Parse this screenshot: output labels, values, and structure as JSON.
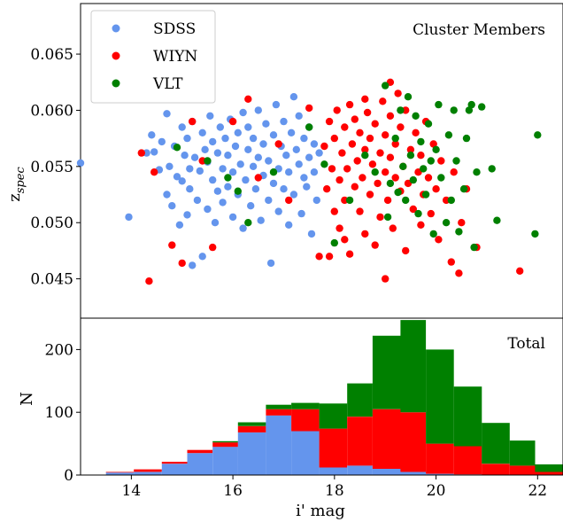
{
  "chart_data": [
    {
      "type": "scatter",
      "annotation": "Cluster Members",
      "ylabel_main": "z",
      "ylabel_sub": "spec",
      "xlim": [
        13.0,
        22.5
      ],
      "ylim": [
        0.0415,
        0.0695
      ],
      "yticks": [
        0.045,
        0.05,
        0.055,
        0.06,
        0.065
      ],
      "ytick_labels": [
        "0.045",
        "0.050",
        "0.055",
        "0.060",
        "0.065"
      ],
      "legend_position": "top-left",
      "series": [
        {
          "name": "SDSS",
          "color": "#6495ed",
          "points": [
            [
              13.0,
              0.0553
            ],
            [
              13.95,
              0.0505
            ],
            [
              14.3,
              0.0562
            ],
            [
              14.4,
              0.0578
            ],
            [
              14.45,
              0.0563
            ],
            [
              14.55,
              0.0547
            ],
            [
              14.6,
              0.0572
            ],
            [
              14.7,
              0.0525
            ],
            [
              14.7,
              0.0597
            ],
            [
              14.75,
              0.055
            ],
            [
              14.8,
              0.0515
            ],
            [
              14.85,
              0.0568
            ],
            [
              14.9,
              0.0541
            ],
            [
              14.95,
              0.0498
            ],
            [
              15.0,
              0.0537
            ],
            [
              15.0,
              0.0585
            ],
            [
              15.05,
              0.056
            ],
            [
              15.1,
              0.0575
            ],
            [
              15.1,
              0.0507
            ],
            [
              15.15,
              0.053
            ],
            [
              15.15,
              0.0548
            ],
            [
              15.2,
              0.0462
            ],
            [
              15.2,
              0.059
            ],
            [
              15.25,
              0.0558
            ],
            [
              15.3,
              0.052
            ],
            [
              15.35,
              0.0546
            ],
            [
              15.4,
              0.058
            ],
            [
              15.4,
              0.047
            ],
            [
              15.45,
              0.0565
            ],
            [
              15.5,
              0.0512
            ],
            [
              15.5,
              0.0554
            ],
            [
              15.55,
              0.0595
            ],
            [
              15.6,
              0.0538
            ],
            [
              15.6,
              0.0572
            ],
            [
              15.65,
              0.05
            ],
            [
              15.7,
              0.0528
            ],
            [
              15.7,
              0.0562
            ],
            [
              15.75,
              0.0585
            ],
            [
              15.8,
              0.0548
            ],
            [
              15.8,
              0.0518
            ],
            [
              15.85,
              0.0575
            ],
            [
              15.9,
              0.0532
            ],
            [
              15.9,
              0.056
            ],
            [
              15.95,
              0.0592
            ],
            [
              16.0,
              0.0505
            ],
            [
              16.0,
              0.0545
            ],
            [
              16.05,
              0.0568
            ],
            [
              16.1,
              0.0525
            ],
            [
              16.1,
              0.058
            ],
            [
              16.15,
              0.0552
            ],
            [
              16.2,
              0.0598
            ],
            [
              16.2,
              0.0495
            ],
            [
              16.25,
              0.0538
            ],
            [
              16.3,
              0.0565
            ],
            [
              16.3,
              0.0585
            ],
            [
              16.35,
              0.0515
            ],
            [
              16.4,
              0.055
            ],
            [
              16.4,
              0.0575
            ],
            [
              16.45,
              0.053
            ],
            [
              16.5,
              0.06
            ],
            [
              16.5,
              0.0558
            ],
            [
              16.55,
              0.0502
            ],
            [
              16.6,
              0.0542
            ],
            [
              16.6,
              0.057
            ],
            [
              16.65,
              0.0588
            ],
            [
              16.7,
              0.052
            ],
            [
              16.7,
              0.0555
            ],
            [
              16.75,
              0.0464
            ],
            [
              16.8,
              0.0535
            ],
            [
              16.8,
              0.0578
            ],
            [
              16.85,
              0.0605
            ],
            [
              16.9,
              0.0548
            ],
            [
              16.9,
              0.051
            ],
            [
              16.95,
              0.0568
            ],
            [
              17.0,
              0.059
            ],
            [
              17.0,
              0.053
            ],
            [
              17.05,
              0.056
            ],
            [
              17.1,
              0.0498
            ],
            [
              17.1,
              0.0545
            ],
            [
              17.15,
              0.058
            ],
            [
              17.2,
              0.0612
            ],
            [
              17.2,
              0.0525
            ],
            [
              17.25,
              0.0565
            ],
            [
              17.3,
              0.0552
            ],
            [
              17.3,
              0.0595
            ],
            [
              17.35,
              0.0508
            ],
            [
              17.4,
              0.054
            ],
            [
              17.4,
              0.0575
            ],
            [
              17.45,
              0.0532
            ],
            [
              17.5,
              0.0585
            ],
            [
              17.5,
              0.0558
            ],
            [
              17.55,
              0.049
            ],
            [
              17.6,
              0.0545
            ],
            [
              17.6,
              0.057
            ],
            [
              17.65,
              0.052
            ],
            [
              17.7,
              0.0562
            ]
          ]
        },
        {
          "name": "WIYN",
          "color": "#ff0000",
          "points": [
            [
              14.2,
              0.0562
            ],
            [
              14.35,
              0.0448
            ],
            [
              14.45,
              0.0545
            ],
            [
              14.8,
              0.048
            ],
            [
              15.0,
              0.0464
            ],
            [
              15.2,
              0.059
            ],
            [
              15.4,
              0.0555
            ],
            [
              15.6,
              0.0478
            ],
            [
              16.0,
              0.059
            ],
            [
              16.3,
              0.061
            ],
            [
              16.5,
              0.054
            ],
            [
              16.9,
              0.057
            ],
            [
              17.1,
              0.052
            ],
            [
              17.5,
              0.0602
            ],
            [
              17.7,
              0.047
            ],
            [
              17.8,
              0.0568
            ],
            [
              17.85,
              0.053
            ],
            [
              17.9,
              0.059
            ],
            [
              17.95,
              0.0548
            ],
            [
              18.0,
              0.051
            ],
            [
              18.0,
              0.0575
            ],
            [
              18.05,
              0.06
            ],
            [
              18.1,
              0.0538
            ],
            [
              18.1,
              0.0495
            ],
            [
              18.15,
              0.0562
            ],
            [
              18.2,
              0.0585
            ],
            [
              18.2,
              0.052
            ],
            [
              18.25,
              0.0548
            ],
            [
              18.3,
              0.0605
            ],
            [
              18.3,
              0.0472
            ],
            [
              18.35,
              0.057
            ],
            [
              18.4,
              0.0532
            ],
            [
              18.4,
              0.0592
            ],
            [
              18.45,
              0.0555
            ],
            [
              18.5,
              0.051
            ],
            [
              18.5,
              0.058
            ],
            [
              18.55,
              0.054
            ],
            [
              18.6,
              0.0565
            ],
            [
              18.6,
              0.049
            ],
            [
              18.65,
              0.0598
            ],
            [
              18.7,
              0.0525
            ],
            [
              18.7,
              0.0575
            ],
            [
              18.75,
              0.0552
            ],
            [
              18.8,
              0.048
            ],
            [
              18.8,
              0.0588
            ],
            [
              18.85,
              0.0535
            ],
            [
              18.9,
              0.0562
            ],
            [
              18.9,
              0.0505
            ],
            [
              18.95,
              0.0608
            ],
            [
              19.0,
              0.0545
            ],
            [
              19.0,
              0.0578
            ],
            [
              19.05,
              0.052
            ],
            [
              19.1,
              0.0595
            ],
            [
              19.1,
              0.0558
            ],
            [
              19.15,
              0.0495
            ],
            [
              19.2,
              0.054
            ],
            [
              19.2,
              0.057
            ],
            [
              19.25,
              0.0615
            ],
            [
              19.3,
              0.0528
            ],
            [
              19.3,
              0.0585
            ],
            [
              19.35,
              0.055
            ],
            [
              19.4,
              0.0475
            ],
            [
              19.4,
              0.06
            ],
            [
              19.45,
              0.0535
            ],
            [
              19.5,
              0.0565
            ],
            [
              19.55,
              0.0512
            ],
            [
              19.6,
              0.058
            ],
            [
              19.65,
              0.0545
            ],
            [
              19.7,
              0.0498
            ],
            [
              19.7,
              0.056
            ],
            [
              19.75,
              0.0525
            ],
            [
              19.8,
              0.059
            ],
            [
              19.85,
              0.054
            ],
            [
              19.9,
              0.0508
            ],
            [
              19.95,
              0.057
            ],
            [
              20.0,
              0.053
            ],
            [
              20.05,
              0.0485
            ],
            [
              20.1,
              0.0555
            ],
            [
              20.2,
              0.052
            ],
            [
              20.3,
              0.0465
            ],
            [
              20.35,
              0.0545
            ],
            [
              20.5,
              0.05
            ],
            [
              20.45,
              0.0455
            ],
            [
              20.6,
              0.053
            ],
            [
              20.8,
              0.0478
            ],
            [
              21.65,
              0.0457
            ],
            [
              19.1,
              0.0625
            ],
            [
              18.6,
              0.061
            ],
            [
              17.9,
              0.047
            ],
            [
              19.0,
              0.045
            ],
            [
              18.2,
              0.0485
            ]
          ]
        },
        {
          "name": "VLT",
          "color": "#008000",
          "points": [
            [
              14.9,
              0.0567
            ],
            [
              15.5,
              0.0555
            ],
            [
              15.9,
              0.054
            ],
            [
              16.1,
              0.0528
            ],
            [
              16.3,
              0.05
            ],
            [
              16.8,
              0.0545
            ],
            [
              17.5,
              0.0585
            ],
            [
              17.8,
              0.0552
            ],
            [
              18.0,
              0.0482
            ],
            [
              18.3,
              0.052
            ],
            [
              18.6,
              0.056
            ],
            [
              18.8,
              0.0545
            ],
            [
              19.0,
              0.0622
            ],
            [
              19.05,
              0.0505
            ],
            [
              19.1,
              0.0535
            ],
            [
              19.2,
              0.0575
            ],
            [
              19.3,
              0.06
            ],
            [
              19.35,
              0.055
            ],
            [
              19.4,
              0.052
            ],
            [
              19.45,
              0.0612
            ],
            [
              19.5,
              0.056
            ],
            [
              19.55,
              0.0538
            ],
            [
              19.6,
              0.0595
            ],
            [
              19.65,
              0.0508
            ],
            [
              19.7,
              0.0572
            ],
            [
              19.75,
              0.0548
            ],
            [
              19.8,
              0.0525
            ],
            [
              19.85,
              0.0588
            ],
            [
              19.9,
              0.0555
            ],
            [
              19.95,
              0.049
            ],
            [
              20.0,
              0.0565
            ],
            [
              20.05,
              0.0605
            ],
            [
              20.1,
              0.054
            ],
            [
              20.2,
              0.05
            ],
            [
              20.25,
              0.0578
            ],
            [
              20.3,
              0.052
            ],
            [
              20.35,
              0.06
            ],
            [
              20.4,
              0.0555
            ],
            [
              20.45,
              0.0492
            ],
            [
              20.55,
              0.053
            ],
            [
              20.6,
              0.0575
            ],
            [
              20.7,
              0.0605
            ],
            [
              20.75,
              0.0478
            ],
            [
              20.8,
              0.0545
            ],
            [
              20.9,
              0.0603
            ],
            [
              21.1,
              0.0548
            ],
            [
              21.2,
              0.0502
            ],
            [
              21.95,
              0.049
            ],
            [
              22.0,
              0.0578
            ],
            [
              20.65,
              0.06
            ],
            [
              19.25,
              0.0527
            ]
          ]
        }
      ]
    },
    {
      "type": "bar",
      "stacked": true,
      "annotation": "Total",
      "xlabel": "i' mag",
      "ylabel": "N",
      "xlim": [
        13.0,
        22.5
      ],
      "ylim": [
        0,
        250
      ],
      "xticks": [
        14,
        16,
        18,
        20,
        22
      ],
      "xtick_labels": [
        "14",
        "16",
        "18",
        "20",
        "22"
      ],
      "yticks": [
        0,
        100,
        200
      ],
      "ytick_labels": [
        "0",
        "100",
        "200"
      ],
      "bin_edges": [
        13.5,
        14.05,
        14.6,
        15.1,
        15.6,
        16.1,
        16.65,
        17.15,
        17.7,
        18.25,
        18.75,
        19.3,
        19.8,
        20.35,
        20.9,
        21.45,
        21.95,
        22.5
      ],
      "series": [
        {
          "name": "SDSS",
          "color": "#6495ed",
          "values": [
            4,
            5,
            18,
            35,
            45,
            68,
            95,
            70,
            12,
            15,
            10,
            5,
            2,
            1,
            0,
            0,
            0
          ]
        },
        {
          "name": "WIYN",
          "color": "#ff0000",
          "values": [
            1,
            4,
            3,
            5,
            7,
            10,
            10,
            35,
            62,
            78,
            95,
            95,
            48,
            45,
            18,
            15,
            5
          ]
        },
        {
          "name": "VLT",
          "color": "#008000",
          "values": [
            0,
            0,
            0,
            0,
            2,
            6,
            7,
            10,
            40,
            53,
            117,
            147,
            150,
            95,
            65,
            40,
            12
          ]
        }
      ]
    }
  ]
}
